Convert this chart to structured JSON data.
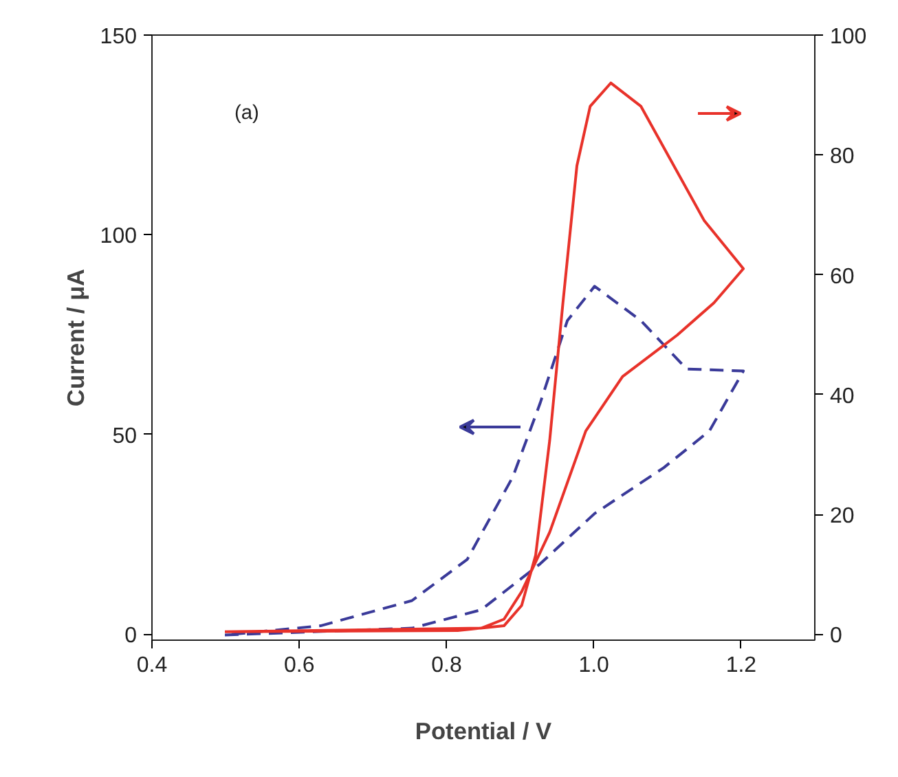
{
  "chart_data": {
    "type": "line",
    "xlabel": "Potential / V",
    "ylabel": "Current / μA",
    "xlim": [
      0.4,
      1.3
    ],
    "xticks": [
      {
        "value": 0.4,
        "label": "0.4"
      },
      {
        "value": 0.6,
        "label": "0.6"
      },
      {
        "value": 0.8,
        "label": "0.8"
      },
      {
        "value": 1.0,
        "label": "1.0"
      },
      {
        "value": 1.2,
        "label": "1.2"
      }
    ],
    "ylim": [
      -1.5,
      150
    ],
    "yticks": [
      0,
      50,
      100,
      150
    ],
    "y2lim": [
      -1,
      100
    ],
    "y2ticks": [
      0,
      20,
      40,
      60,
      80,
      100
    ],
    "grid": false,
    "marker": "none",
    "annotations": [
      "(a)"
    ],
    "series": [
      {
        "color": "#3a3a99",
        "line_style": "dashed",
        "x": [
          0.499,
          0.753,
          0.847,
          0.927,
          1.001,
          1.095,
          1.157,
          1.203,
          1.126,
          1.064,
          1.001,
          0.964,
          0.927,
          0.89,
          0.828,
          0.753,
          0.629,
          0.5
        ],
        "values": [
          -0.2,
          1.5,
          6.1,
          17.6,
          30.2,
          41.7,
          50.9,
          65.9,
          66.4,
          78.5,
          87.1,
          78.5,
          57.8,
          39.4,
          18.7,
          8.4,
          2.1,
          -0.2
        ]
      },
      {
        "color": "#e8322a",
        "line_style": "solid",
        "axis": "y2",
        "x": [
          0.499,
          0.847,
          0.878,
          0.902,
          0.94,
          0.989,
          1.039,
          1.113,
          1.163,
          1.203,
          1.15,
          1.064,
          1.023,
          0.995,
          0.977,
          0.958,
          0.94,
          0.921,
          0.902,
          0.878,
          0.815,
          0.5
        ],
        "values": [
          0.4,
          1.0,
          2.5,
          7.1,
          17,
          33.9,
          43,
          49.9,
          55.3,
          61,
          69,
          88.1,
          92,
          88.1,
          78.2,
          55.3,
          32.3,
          13.2,
          4.8,
          1.4,
          0.6,
          0.4
        ]
      }
    ]
  }
}
